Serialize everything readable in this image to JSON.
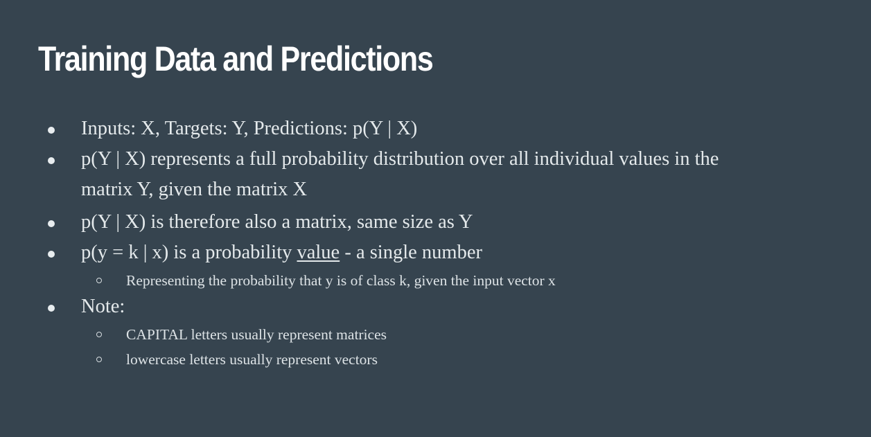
{
  "slide": {
    "title": "Training Data and Predictions",
    "bullets": [
      {
        "text": "Inputs: X, Targets: Y, Predictions: p(Y | X)"
      },
      {
        "line_1": "p(Y | X) represents a full probability distribution over all individual values in the",
        "line_2": "matrix Y, given the matrix X"
      },
      {
        "text": "p(Y | X) is therefore also a matrix, same size as Y"
      },
      {
        "prefix": "p(y = k | x) is a probability ",
        "emphasis": "value",
        "suffix": " - a single number",
        "sub_items": [
          "Representing the probability that y is of class k, given the input vector x"
        ]
      },
      {
        "text": "Note:",
        "sub_items": [
          "CAPITAL letters usually represent matrices",
          "lowercase letters usually represent vectors"
        ]
      }
    ]
  },
  "theme": {
    "background": "#36444f",
    "text": "#eef2f3"
  }
}
